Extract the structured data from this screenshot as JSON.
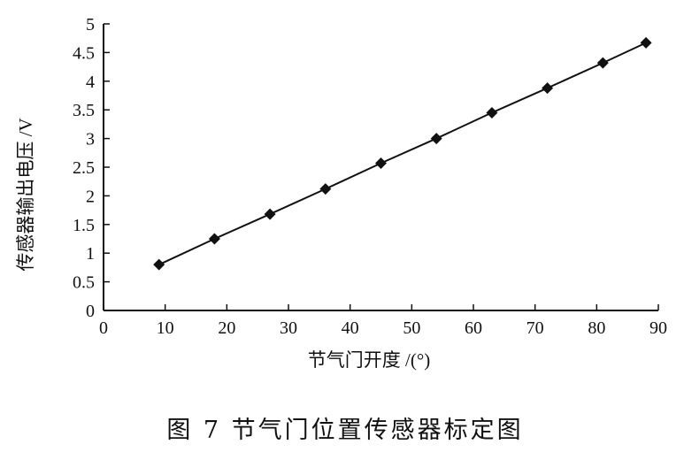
{
  "chart_data": {
    "type": "line",
    "title": "",
    "caption": "图 7   节气门位置传感器标定图",
    "xlabel": "节气门开度 /(°)",
    "ylabel": "传感器输出电压 /V",
    "xlim": [
      0,
      90
    ],
    "ylim": [
      0,
      5
    ],
    "xticks": [
      "0",
      "10",
      "20",
      "30",
      "40",
      "50",
      "60",
      "70",
      "80",
      "90"
    ],
    "yticks": [
      "0",
      "0.5",
      "1",
      "1.5",
      "2",
      "2.5",
      "3",
      "3.5",
      "4",
      "4.5",
      "5"
    ],
    "grid": false,
    "marker": "diamond",
    "color": "#111111",
    "series": [
      {
        "x": [
          9,
          18,
          27,
          36,
          45,
          54,
          63,
          72,
          81,
          88
        ],
        "values": [
          0.8,
          1.25,
          1.68,
          2.12,
          2.57,
          3.0,
          3.45,
          3.88,
          4.32,
          4.67
        ]
      }
    ]
  }
}
